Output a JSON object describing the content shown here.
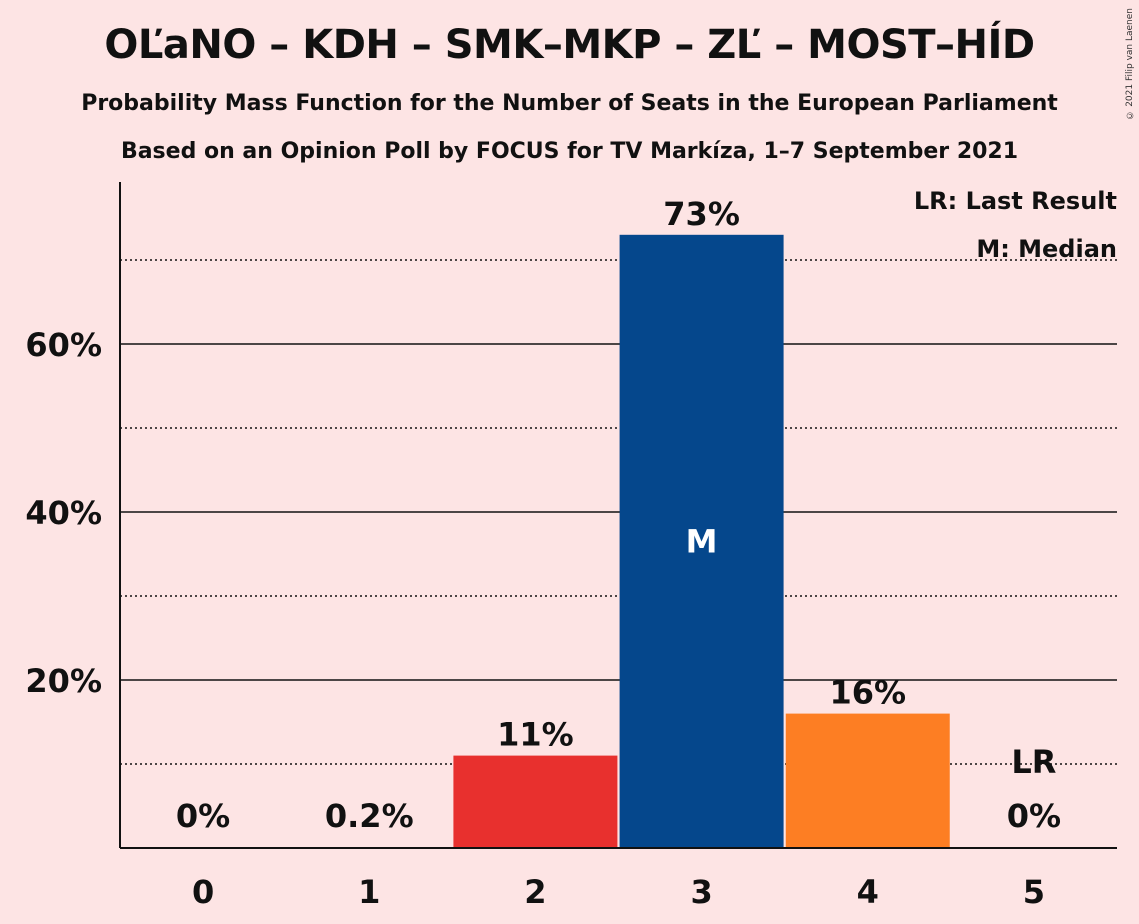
{
  "header": {
    "title": "OĽaNO – KDH – SMK–MKP – ZĽ – MOST–HÍD",
    "subtitle": "Probability Mass Function for the Number of Seats in the European Parliament",
    "subtitle2": "Based on an Opinion Poll by FOCUS for TV Markíza, 1–7 September 2021",
    "copyright": "© 2021 Filip van Laenen"
  },
  "legend": {
    "last_result": "LR: Last Result",
    "median": "M: Median"
  },
  "colors": {
    "background": "#fde4e4",
    "red": "#e8302e",
    "blue": "#05478c",
    "orange": "#fd7e23"
  },
  "chart_data": {
    "type": "bar",
    "categories": [
      "0",
      "1",
      "2",
      "3",
      "4",
      "5"
    ],
    "values": [
      0,
      0.2,
      11,
      73,
      16,
      0
    ],
    "value_labels": [
      "0%",
      "0.2%",
      "11%",
      "73%",
      "16%",
      "0%"
    ],
    "bar_colors": [
      "#e8302e",
      "#e8302e",
      "#e8302e",
      "#05478c",
      "#fd7e23",
      "#fd7e23"
    ],
    "ytick_labels": [
      "20%",
      "40%",
      "60%"
    ],
    "yticks": [
      20,
      40,
      60
    ],
    "minor_gridlines": [
      10,
      30,
      50,
      70
    ],
    "ylim": [
      0,
      79
    ],
    "median_category": "3",
    "median_marker": "M",
    "last_result_category": "5",
    "last_result_marker": "LR",
    "legend_position": "top-right"
  }
}
